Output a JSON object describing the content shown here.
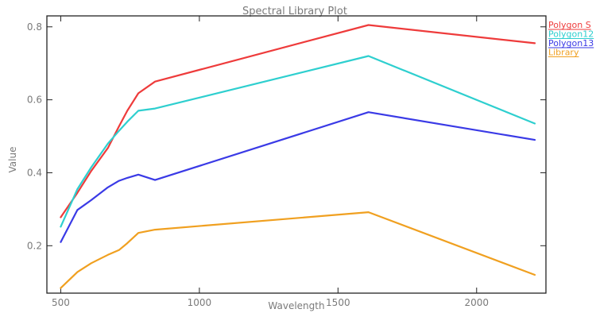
{
  "chart_data": {
    "type": "line",
    "title": "Spectral Library Plot",
    "xlabel": "Wavelength",
    "ylabel": "Value",
    "xlim": [
      450,
      2250
    ],
    "ylim": [
      0.07,
      0.83
    ],
    "xticks": [
      500,
      1000,
      1500,
      2000
    ],
    "yticks": [
      0.2,
      0.4,
      0.6,
      0.8
    ],
    "xtick_labels": [
      "500",
      "1000",
      "1500",
      "2000"
    ],
    "ytick_labels": [
      "0.2",
      "0.4",
      "0.6",
      "0.8"
    ],
    "grid": false,
    "legend_position": "right",
    "series": [
      {
        "name": "Polygon S",
        "color": "#ee3b3b",
        "x": [
          500,
          560,
          610,
          670,
          710,
          740,
          780,
          840,
          1610,
          2210
        ],
        "y": [
          0.278,
          0.345,
          0.405,
          0.468,
          0.527,
          0.57,
          0.618,
          0.65,
          0.805,
          0.755
        ]
      },
      {
        "name": "Polygon12",
        "color": "#2ecfcf",
        "x": [
          500,
          560,
          610,
          670,
          710,
          740,
          780,
          840,
          1610,
          2210
        ],
        "y": [
          0.252,
          0.355,
          0.415,
          0.48,
          0.515,
          0.54,
          0.57,
          0.576,
          0.72,
          0.535
        ]
      },
      {
        "name": "Polygon13",
        "color": "#3a3ae6",
        "x": [
          500,
          560,
          610,
          670,
          710,
          740,
          780,
          840,
          1610,
          2210
        ],
        "y": [
          0.21,
          0.298,
          0.325,
          0.36,
          0.378,
          0.386,
          0.395,
          0.38,
          0.566,
          0.49
        ]
      },
      {
        "name": "Library",
        "color": "#f0a020",
        "x": [
          500,
          560,
          610,
          670,
          710,
          740,
          780,
          840,
          1610,
          2210
        ],
        "y": [
          0.084,
          0.128,
          0.152,
          0.175,
          0.188,
          0.207,
          0.235,
          0.244,
          0.292,
          0.12
        ]
      }
    ]
  }
}
